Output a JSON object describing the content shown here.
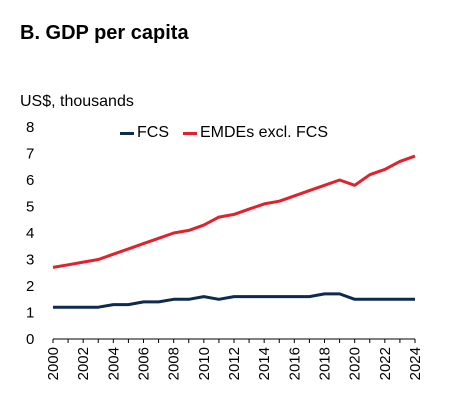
{
  "title": "B. GDP per capita",
  "colors": {
    "FCS": "#0d2a4f",
    "EMDEs excl. FCS": "#e3202b"
  },
  "chart_data": {
    "type": "line",
    "ylabel": "US$, thousands",
    "ylim": [
      0,
      8
    ],
    "yticks": [
      0,
      1,
      2,
      3,
      4,
      5,
      6,
      7,
      8
    ],
    "xticks": [
      "2000",
      "2002",
      "2004",
      "2006",
      "2008",
      "2010",
      "2012",
      "2014",
      "2016",
      "2018",
      "2020",
      "2022",
      "2024"
    ],
    "x": [
      2000,
      2001,
      2002,
      2003,
      2004,
      2005,
      2006,
      2007,
      2008,
      2009,
      2010,
      2011,
      2012,
      2013,
      2014,
      2015,
      2016,
      2017,
      2018,
      2019,
      2020,
      2021,
      2022,
      2023,
      2024
    ],
    "legend_position": "top",
    "grid": false,
    "series": [
      {
        "name": "FCS",
        "values": [
          1.2,
          1.2,
          1.2,
          1.2,
          1.3,
          1.3,
          1.4,
          1.4,
          1.5,
          1.5,
          1.6,
          1.5,
          1.6,
          1.6,
          1.6,
          1.6,
          1.6,
          1.6,
          1.7,
          1.7,
          1.5,
          1.5,
          1.5,
          1.5,
          1.5
        ]
      },
      {
        "name": "EMDEs excl. FCS",
        "values": [
          2.7,
          2.8,
          2.9,
          3.0,
          3.2,
          3.4,
          3.6,
          3.8,
          4.0,
          4.1,
          4.3,
          4.6,
          4.7,
          4.9,
          5.1,
          5.2,
          5.4,
          5.6,
          5.8,
          6.0,
          5.8,
          6.2,
          6.4,
          6.7,
          6.9
        ]
      }
    ]
  }
}
